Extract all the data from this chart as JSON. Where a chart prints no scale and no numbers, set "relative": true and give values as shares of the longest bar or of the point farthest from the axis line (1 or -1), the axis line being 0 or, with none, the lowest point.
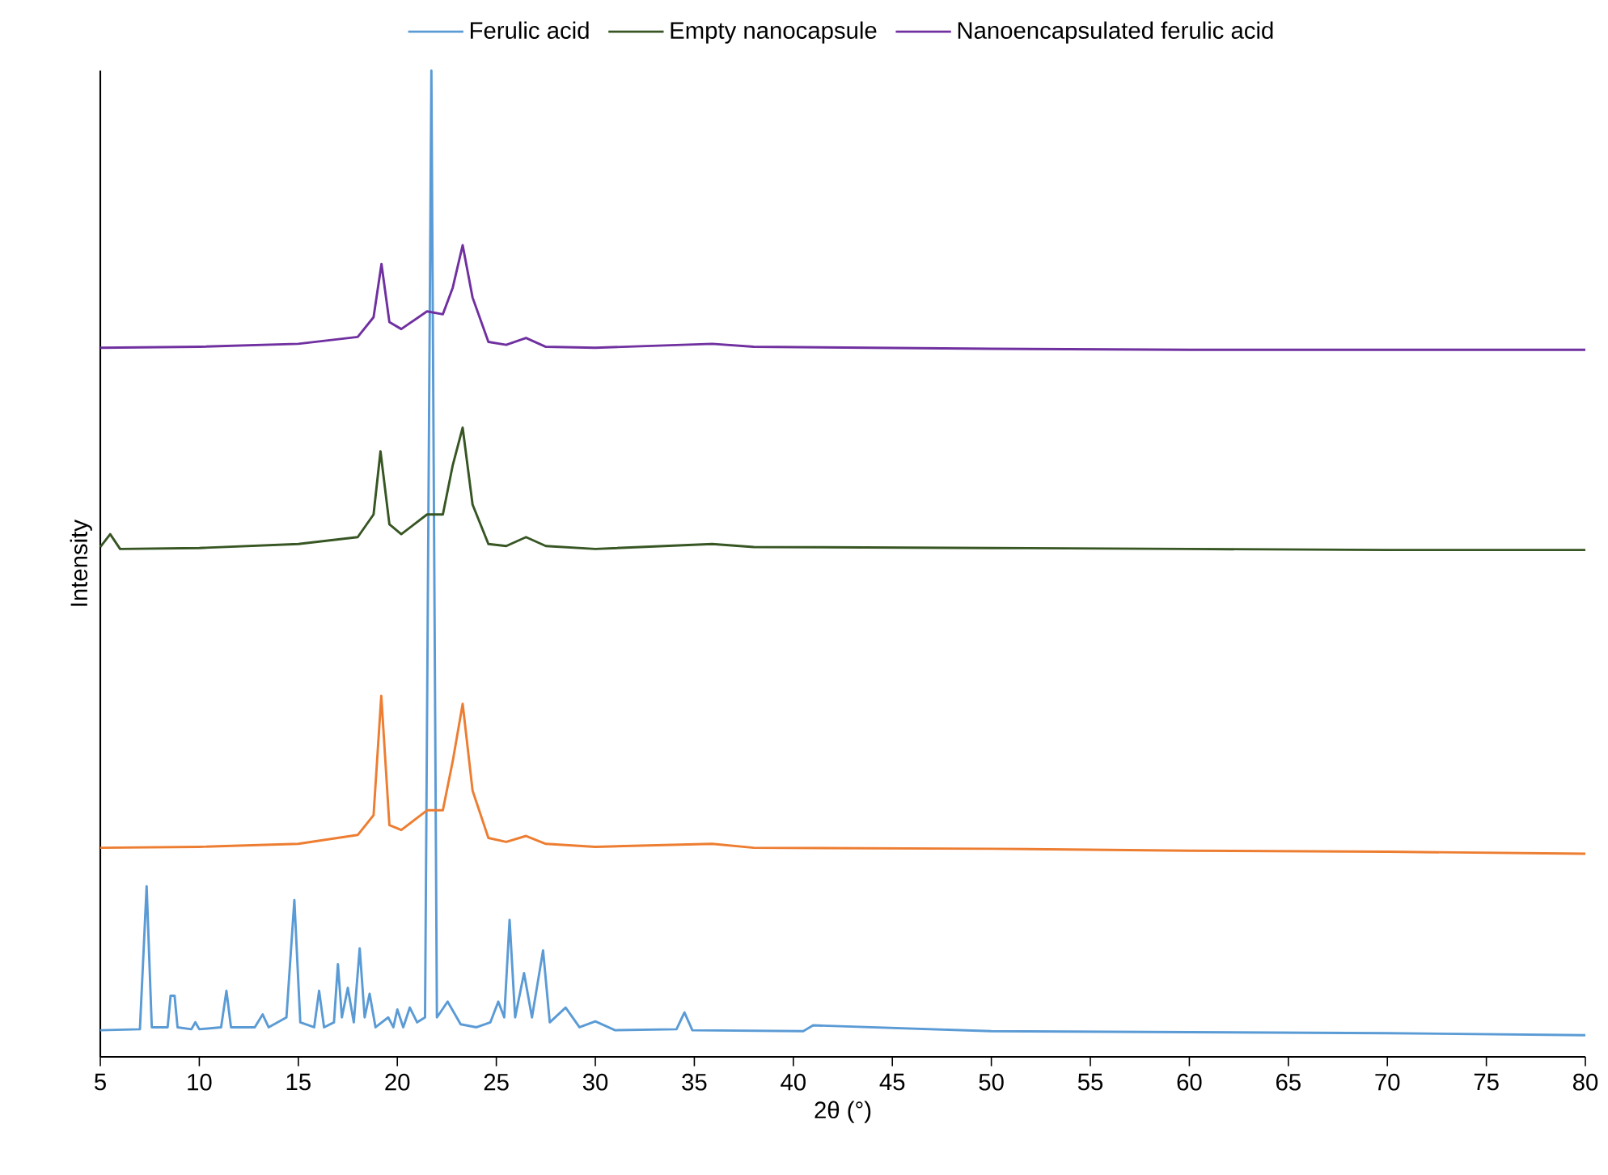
{
  "chart_data": {
    "type": "line",
    "relative": true,
    "xlabel": "2θ (°)",
    "ylabel": "Intensity",
    "xlim": [
      5,
      80
    ],
    "xticks": [
      5,
      10,
      15,
      20,
      25,
      30,
      35,
      40,
      45,
      50,
      55,
      60,
      65,
      70,
      75,
      80
    ],
    "legend": "top",
    "line_style": "solid",
    "marker": "none",
    "grid": false,
    "tick_labels": "x",
    "series": [
      {
        "name": "Ferulic acid",
        "color": "#5b9bd5",
        "x": [
          5,
          7.0,
          7.34,
          7.6,
          8.4,
          8.55,
          8.75,
          8.9,
          9.6,
          9.8,
          10,
          11.1,
          11.37,
          11.6,
          12.8,
          13.2,
          13.5,
          14.4,
          14.8,
          15.1,
          15.8,
          16.05,
          16.3,
          16.8,
          17.0,
          17.2,
          17.5,
          17.8,
          18.1,
          18.35,
          18.6,
          18.9,
          19.54,
          19.8,
          20.0,
          20.3,
          20.63,
          21.0,
          21.4,
          21.72,
          22.0,
          22.54,
          23.2,
          24.0,
          24.7,
          25.1,
          25.4,
          25.67,
          25.95,
          26.4,
          26.8,
          27.36,
          27.7,
          28.5,
          29.2,
          30.0,
          31,
          34.1,
          34.5,
          34.9,
          40.5,
          41,
          50,
          60,
          70,
          80
        ],
        "values": [
          0.027,
          0.028,
          0.173,
          0.03,
          0.03,
          0.062,
          0.062,
          0.03,
          0.028,
          0.035,
          0.028,
          0.03,
          0.067,
          0.03,
          0.03,
          0.043,
          0.03,
          0.04,
          0.159,
          0.035,
          0.03,
          0.067,
          0.03,
          0.035,
          0.094,
          0.04,
          0.07,
          0.035,
          0.11,
          0.04,
          0.064,
          0.03,
          0.04,
          0.03,
          0.048,
          0.03,
          0.05,
          0.035,
          0.04,
          1.0,
          0.04,
          0.056,
          0.033,
          0.03,
          0.035,
          0.056,
          0.04,
          0.139,
          0.04,
          0.085,
          0.04,
          0.108,
          0.035,
          0.05,
          0.03,
          0.036,
          0.027,
          0.028,
          0.045,
          0.027,
          0.026,
          0.032,
          0.026,
          0.025,
          0.024,
          0.022
        ]
      },
      {
        "color": "#ed7d31",
        "x": [
          5,
          10,
          15,
          18.0,
          18.8,
          19.19,
          19.6,
          20.2,
          21.5,
          22.3,
          22.8,
          23.3,
          23.8,
          24.6,
          25.5,
          26.5,
          27.5,
          30,
          35.9,
          38,
          50,
          60,
          70,
          80
        ],
        "values": [
          0.212,
          0.213,
          0.216,
          0.225,
          0.245,
          0.366,
          0.235,
          0.23,
          0.25,
          0.25,
          0.3,
          0.358,
          0.27,
          0.222,
          0.218,
          0.224,
          0.216,
          0.213,
          0.216,
          0.212,
          0.211,
          0.209,
          0.208,
          0.206
        ]
      },
      {
        "name": "Empty nanocapsule",
        "color": "#375623",
        "x": [
          5,
          5.5,
          6,
          10,
          15,
          18.0,
          18.8,
          19.15,
          19.6,
          20.2,
          21.5,
          22.3,
          22.8,
          23.3,
          23.8,
          24.6,
          25.5,
          26.5,
          27.5,
          30,
          35.9,
          38,
          50,
          60,
          70,
          80
        ],
        "values": [
          0.517,
          0.53,
          0.515,
          0.516,
          0.52,
          0.527,
          0.55,
          0.614,
          0.54,
          0.53,
          0.55,
          0.55,
          0.6,
          0.638,
          0.56,
          0.52,
          0.518,
          0.527,
          0.518,
          0.515,
          0.52,
          0.517,
          0.516,
          0.515,
          0.514,
          0.514
        ]
      },
      {
        "name": "Nanoencapsulated ferulic acid",
        "color": "#7030a0",
        "x": [
          5,
          10,
          15,
          18.0,
          18.8,
          19.2,
          19.6,
          20.2,
          21.5,
          22.3,
          22.8,
          23.3,
          23.8,
          24.6,
          25.5,
          26.5,
          27.5,
          30,
          35.9,
          38,
          50,
          60,
          70,
          80
        ],
        "values": [
          0.719,
          0.72,
          0.723,
          0.73,
          0.75,
          0.804,
          0.745,
          0.738,
          0.756,
          0.753,
          0.78,
          0.823,
          0.77,
          0.725,
          0.722,
          0.729,
          0.72,
          0.719,
          0.723,
          0.72,
          0.718,
          0.717,
          0.717,
          0.717
        ]
      }
    ]
  }
}
